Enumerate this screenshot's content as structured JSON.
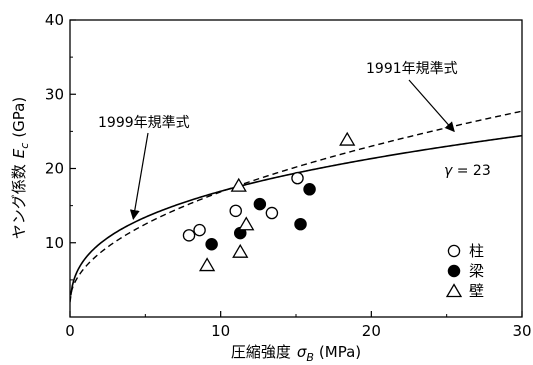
{
  "chart_data": {
    "type": "scatter",
    "xlabel": "圧縮強度",
    "xlabel_symbol": "σ",
    "xlabel_sub": "B",
    "xlabel_unit": "(MPa)",
    "ylabel": "ヤング係数",
    "ylabel_symbol": "E",
    "ylabel_sub": "c",
    "ylabel_unit": "(GPa)",
    "xlim": [
      0,
      30
    ],
    "ylim": [
      0,
      40
    ],
    "xticks": [
      0,
      10,
      20,
      30
    ],
    "yticks": [
      10,
      20,
      30,
      40
    ],
    "grid": false,
    "legend_position": "right",
    "series": [
      {
        "name": "柱",
        "marker": "circle-open",
        "points": [
          [
            7.9,
            11.0
          ],
          [
            8.6,
            11.7
          ],
          [
            11.0,
            14.3
          ],
          [
            13.4,
            14.0
          ],
          [
            15.1,
            18.7
          ]
        ]
      },
      {
        "name": "梁",
        "marker": "circle-filled",
        "points": [
          [
            9.4,
            9.8
          ],
          [
            11.3,
            11.3
          ],
          [
            12.6,
            15.2
          ],
          [
            15.3,
            12.5
          ],
          [
            15.9,
            17.2
          ]
        ]
      },
      {
        "name": "壁",
        "marker": "triangle-open",
        "points": [
          [
            9.1,
            7.0
          ],
          [
            11.2,
            17.7
          ],
          [
            11.3,
            8.8
          ],
          [
            11.7,
            12.5
          ],
          [
            18.4,
            23.9
          ]
        ]
      }
    ],
    "curves": [
      {
        "name": "1999年規準式",
        "style": "solid",
        "gamma": 23
      },
      {
        "name": "1991年規準式",
        "style": "dashed"
      }
    ],
    "annotations": [
      {
        "text": "1999年規準式",
        "points_to": [
          4.2,
          13.2
        ]
      },
      {
        "text": "1991年規準式",
        "points_to": [
          25.5,
          25.0
        ]
      },
      {
        "text_prefix": "γ",
        "text_suffix": " = 23"
      }
    ]
  }
}
